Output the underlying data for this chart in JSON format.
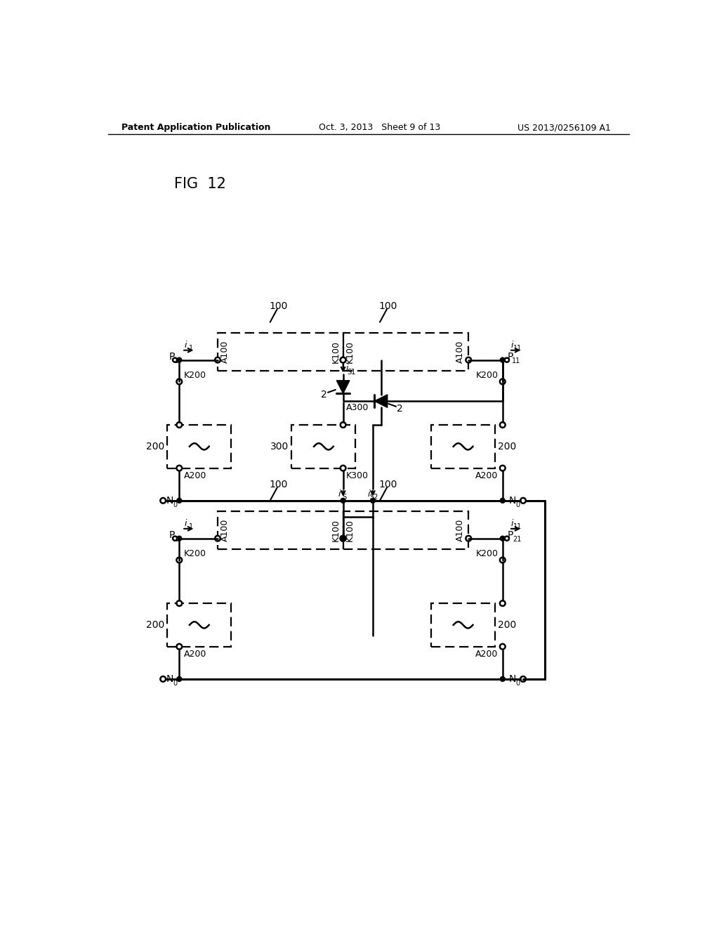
{
  "header_left": "Patent Application Publication",
  "header_center": "Oct. 3, 2013   Sheet 9 of 13",
  "header_right": "US 2013/0256109 A1",
  "fig_label": "FIG 12",
  "bg_color": "#ffffff",
  "line_color": "#000000"
}
